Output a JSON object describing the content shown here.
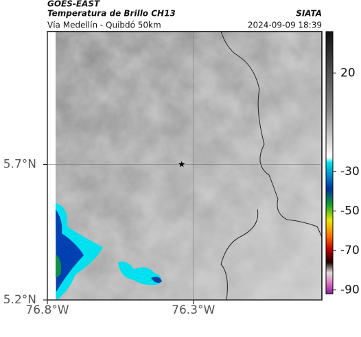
{
  "header": {
    "title": "GOES-EAST",
    "subtitle": "Temperatura de Brillo CH13",
    "source": "SIATA",
    "region": "Vía Medellín - Quibdó 50km",
    "datetime": "2024-09-09 18:39"
  },
  "map": {
    "xlim": [
      -76.8,
      -75.86
    ],
    "ylim": [
      5.2,
      6.19
    ],
    "xticks": [
      {
        "value": -76.8,
        "label": "76.8°W"
      },
      {
        "value": -76.3,
        "label": "76.3°W"
      }
    ],
    "yticks": [
      {
        "value": 5.7,
        "label": "5.7°N"
      },
      {
        "value": 5.2,
        "label": "5.2°N"
      }
    ],
    "grid": true,
    "marker": {
      "lon": -76.34,
      "lat": 5.7
    }
  },
  "colorbar": {
    "lim": [
      -92,
      41
    ],
    "ticks": [
      20,
      -30,
      -50,
      -70,
      -90
    ]
  }
}
